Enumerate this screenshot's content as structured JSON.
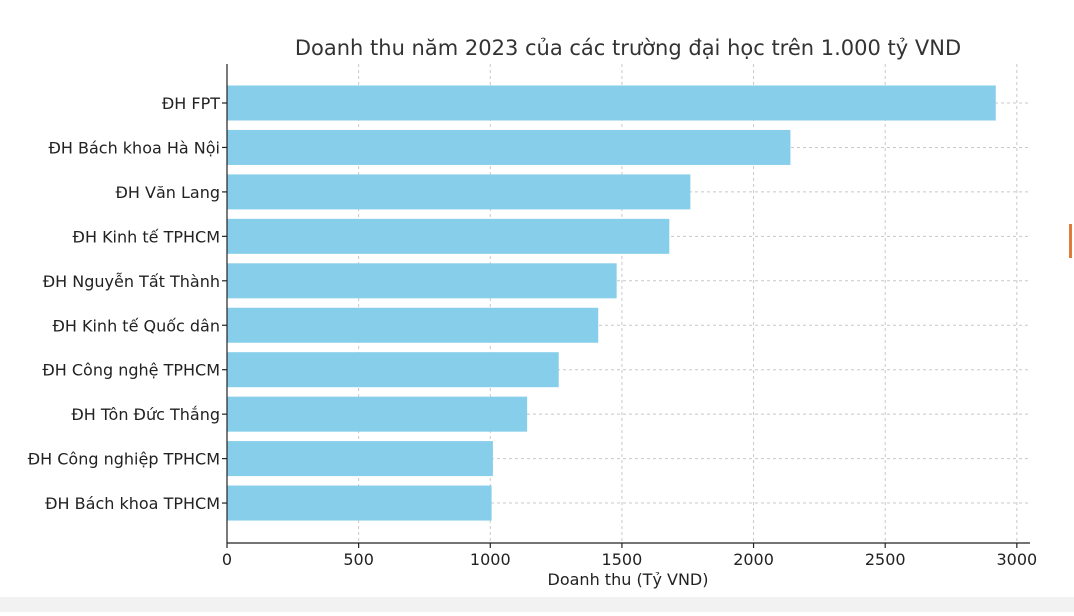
{
  "chart_data": {
    "type": "bar",
    "orientation": "horizontal",
    "title": "Doanh thu năm 2023 của các trường đại học trên 1.000 tỷ VND",
    "xlabel": "Doanh thu (Tỷ VND)",
    "ylabel": "",
    "categories": [
      "ĐH FPT",
      "ĐH Bách khoa Hà Nội",
      "ĐH Văn Lang",
      "ĐH Kinh tế TPHCM",
      "ĐH Nguyễn Tất Thành",
      "ĐH Kinh tế Quốc dân",
      "ĐH Công nghệ TPHCM",
      "ĐH Tôn Đức Thắng",
      "ĐH Công nghiệp TPHCM",
      "ĐH Bách khoa TPHCM"
    ],
    "values": [
      2920,
      2140,
      1760,
      1680,
      1480,
      1410,
      1260,
      1140,
      1010,
      1005
    ],
    "xlim": [
      0,
      3050
    ],
    "xticks": [
      0,
      500,
      1000,
      1500,
      2000,
      2500,
      3000
    ],
    "xtick_labels": [
      "0",
      "500",
      "1000",
      "1500",
      "2000",
      "2500",
      "3000"
    ],
    "grid": true,
    "bar_color": "#87ceeb",
    "grid_color": "#c8c8c8",
    "axis_color": "#222222"
  }
}
